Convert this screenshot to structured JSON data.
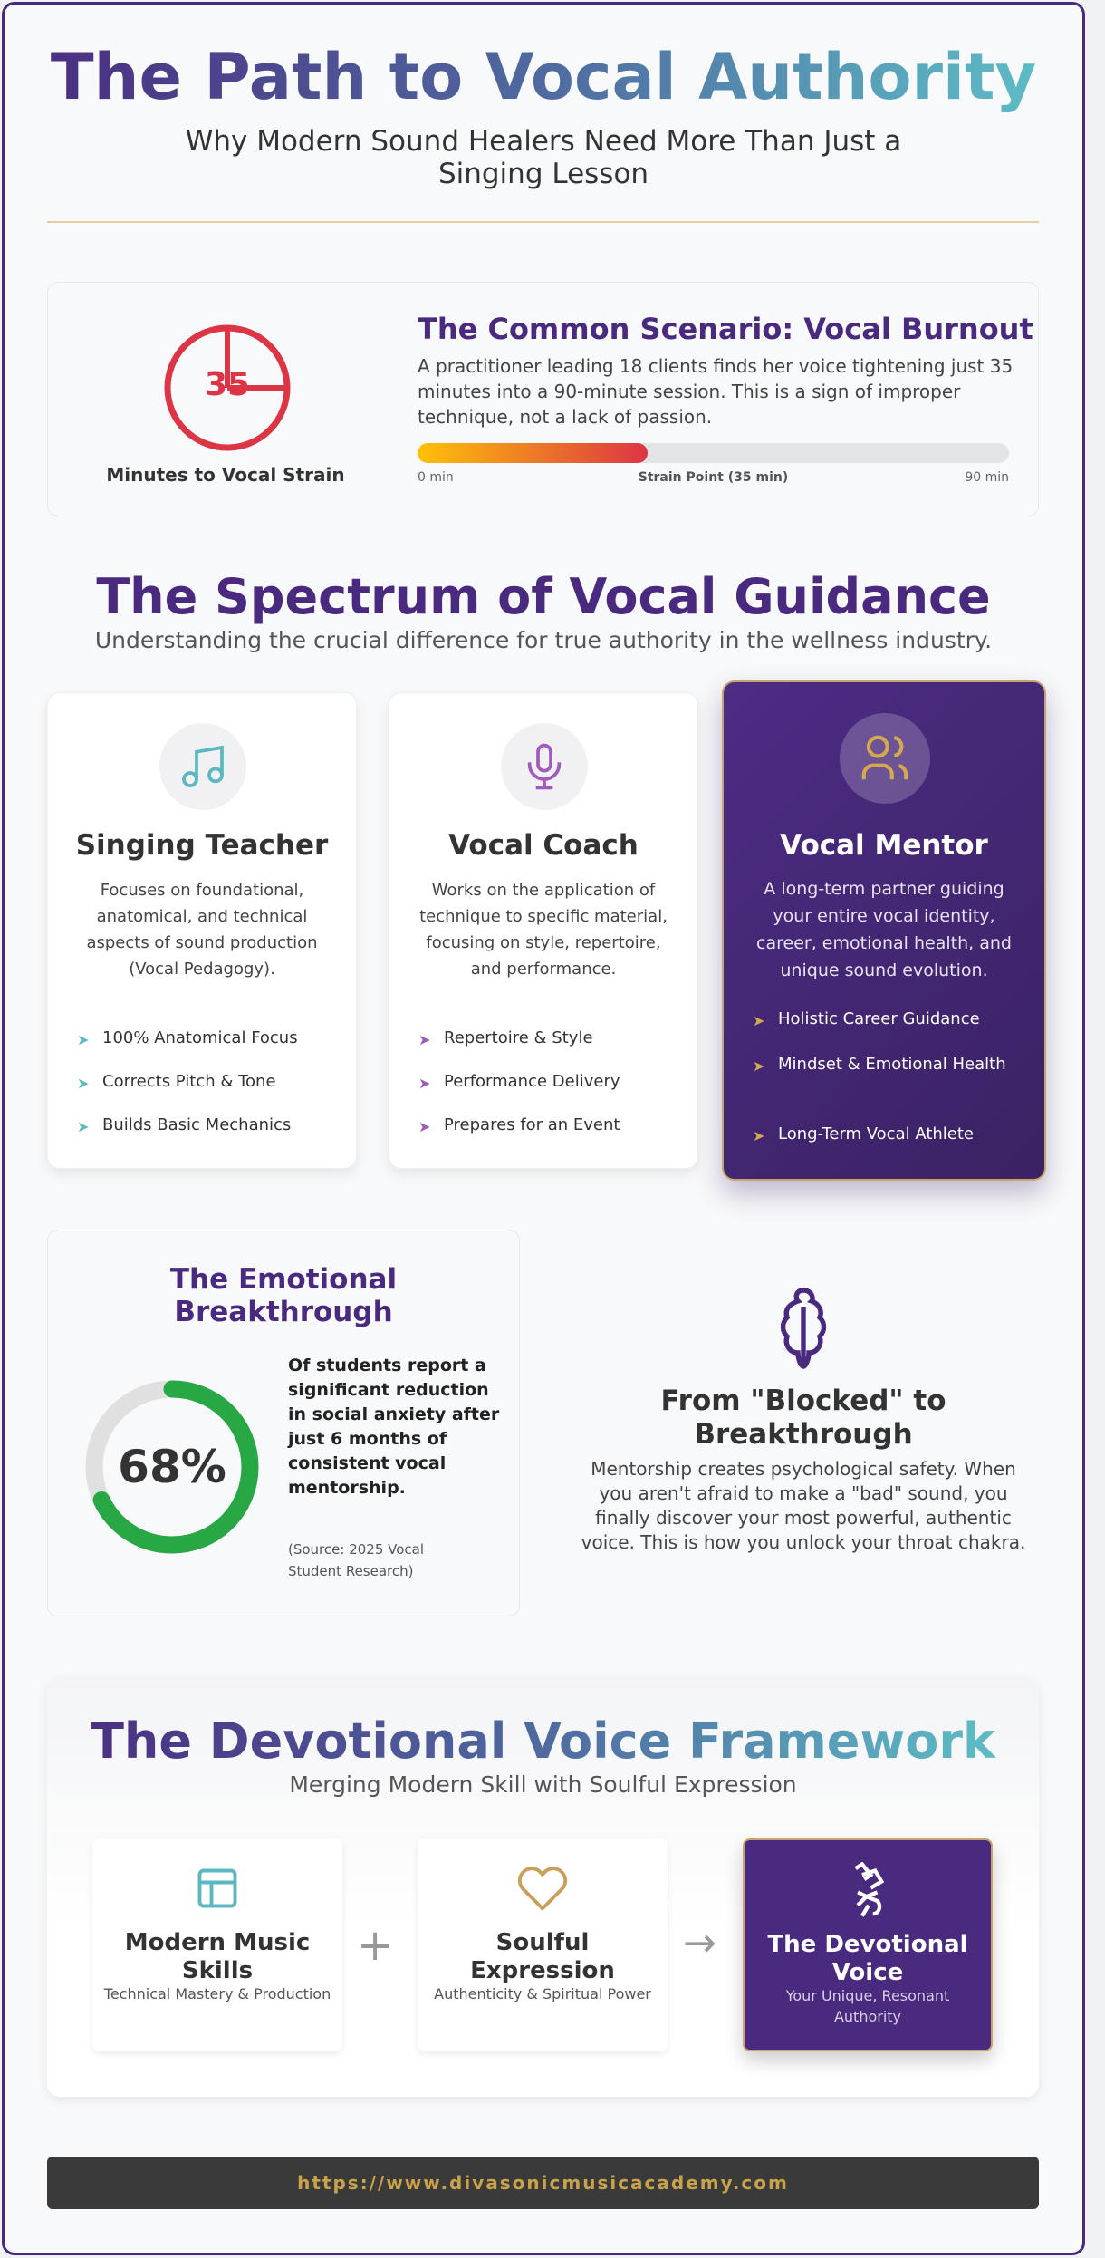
{
  "header": {
    "title": "The Path to Vocal Authority",
    "subtitle": "Why Modern Sound Healers Need More Than Just a Singing Lesson"
  },
  "scenario": {
    "clock_value": "35",
    "clock_label": "Minutes to Vocal Strain",
    "title": "The Common Scenario: Vocal Burnout",
    "text": "A practitioner leading 18 clients finds her voice tightening just 35 minutes into a 90-minute session. This is a sign of improper technique, not a lack of passion.",
    "progress_percent": 38.9,
    "bar_start": "0 min",
    "bar_mid": "Strain Point (35 min)",
    "bar_end": "90 min",
    "colors": {
      "start": "#ffc107",
      "end": "#dc3545"
    }
  },
  "spectrum": {
    "title": "The Spectrum of Vocal Guidance",
    "subtitle": "Understanding the crucial difference for true authority in the wellness industry.",
    "cards": [
      {
        "icon": "music-note-icon",
        "title": "Singing Teacher",
        "desc": "Focuses on foundational, anatomical, and technical aspects of sound production (Vocal Pedagogy).",
        "items": [
          "100% Anatomical Focus",
          "Corrects Pitch & Tone",
          "Builds Basic Mechanics"
        ]
      },
      {
        "icon": "microphone-icon",
        "title": "Vocal Coach",
        "desc": "Works on the application of technique to specific material, focusing on style, repertoire, and performance.",
        "items": [
          "Repertoire & Style",
          "Performance Delivery",
          "Prepares for an Event"
        ]
      },
      {
        "icon": "users-icon",
        "title": "Vocal Mentor",
        "desc": "A long-term partner guiding your entire vocal identity, career, emotional health, and unique sound evolution.",
        "items": [
          "Holistic Career Guidance",
          "Mindset & Emotional Health",
          "Long-Term Vocal Athlete"
        ]
      }
    ]
  },
  "emotional": {
    "title": "The Emotional Breakthrough",
    "percent_label": "68%",
    "percent": 68,
    "text": "Of students report a significant reduction in social anxiety after just 6 months of consistent vocal mentorship.",
    "source": "(Source: 2025 Vocal Student Research)"
  },
  "breakthrough": {
    "icon": "throat-chakra-icon",
    "title": "From \"Blocked\" to Breakthrough",
    "text": "Mentorship creates psychological safety. When you aren't afraid to make a \"bad\" sound, you finally discover your most powerful, authentic voice. This is how you unlock your throat chakra."
  },
  "framework": {
    "title": "The Devotional Voice Framework",
    "subtitle": "Merging Modern Skill with Soulful Expression",
    "plus": "+",
    "arrow": "→",
    "boxes": [
      {
        "icon": "layout-icon",
        "title": "Modern Music Skills",
        "sub": "Technical Mastery & Production"
      },
      {
        "icon": "heart-icon",
        "title": "Soulful Expression",
        "sub": "Authenticity & Spiritual Power"
      },
      {
        "icon": "hands-icon",
        "title": "The Devotional Voice",
        "sub": "Your Unique, Resonant Authority"
      }
    ]
  },
  "footer": {
    "url": "https://www.divasonicmusicacademy.com"
  }
}
